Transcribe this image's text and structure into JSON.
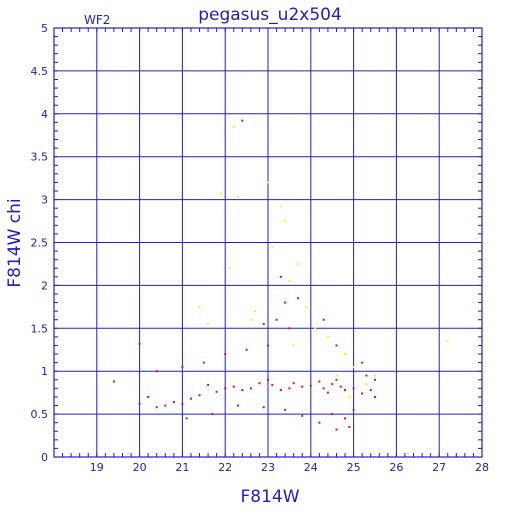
{
  "chart_data": {
    "type": "scatter",
    "title": "pegasus_u2x504",
    "corner_label": "WF2",
    "xlabel": "F814W",
    "ylabel": "F814W chi",
    "xlim": [
      18,
      28
    ],
    "ylim": [
      0,
      5
    ],
    "x_major_ticks": [
      19,
      20,
      21,
      22,
      23,
      24,
      25,
      26,
      27,
      28
    ],
    "y_major_ticks": [
      0,
      0.5,
      1,
      1.5,
      2,
      2.5,
      3,
      3.5,
      4,
      4.5,
      5
    ],
    "x_tick_labels": [
      "19",
      "20",
      "21",
      "22",
      "23",
      "24",
      "25",
      "26",
      "27",
      "28"
    ],
    "y_tick_labels": [
      "0",
      "0.5",
      "1",
      "1.5",
      "2",
      "2.5",
      "3",
      "3.5",
      "4",
      "4.5",
      "5"
    ],
    "grid": true,
    "colors": {
      "axis": "#2020c0",
      "grid": "#2020c0",
      "primary_points": "#ee1111",
      "secondary_points": "#ffee22"
    },
    "series": [
      {
        "color": "#ee1111",
        "points": [
          [
            24.5,
            0.85
          ],
          [
            24.3,
            0.8
          ],
          [
            24.6,
            0.9
          ],
          [
            24.4,
            0.75
          ],
          [
            24.7,
            0.82
          ],
          [
            24.2,
            0.88
          ],
          [
            24.8,
            0.78
          ],
          [
            24.0,
            0.83
          ],
          [
            25.0,
            0.8
          ],
          [
            25.2,
            0.74
          ],
          [
            25.4,
            0.78
          ],
          [
            25.5,
            0.7
          ],
          [
            23.8,
            0.82
          ],
          [
            23.6,
            0.86
          ],
          [
            23.5,
            0.8
          ],
          [
            23.3,
            0.78
          ],
          [
            23.1,
            0.84
          ],
          [
            23.0,
            0.9
          ],
          [
            22.8,
            0.86
          ],
          [
            22.6,
            0.8
          ],
          [
            22.4,
            0.78
          ],
          [
            22.2,
            0.82
          ],
          [
            22.0,
            0.8
          ],
          [
            21.8,
            0.76
          ],
          [
            21.6,
            0.84
          ],
          [
            21.4,
            0.72
          ],
          [
            21.2,
            0.68
          ],
          [
            21.0,
            0.62
          ],
          [
            20.8,
            0.64
          ],
          [
            20.6,
            0.6
          ],
          [
            20.4,
            0.58
          ],
          [
            20.2,
            0.7
          ],
          [
            20.0,
            0.62
          ],
          [
            19.4,
            0.88
          ],
          [
            20.0,
            1.32
          ],
          [
            20.4,
            1.0
          ],
          [
            21.0,
            1.05
          ],
          [
            21.5,
            1.1
          ],
          [
            22.0,
            1.2
          ],
          [
            22.5,
            1.25
          ],
          [
            23.0,
            1.3
          ],
          [
            23.2,
            1.6
          ],
          [
            22.9,
            1.55
          ],
          [
            23.5,
            1.5
          ],
          [
            23.4,
            1.8
          ],
          [
            23.7,
            1.85
          ],
          [
            23.3,
            2.1
          ],
          [
            22.4,
            3.92
          ],
          [
            24.3,
            1.6
          ],
          [
            24.6,
            1.3
          ],
          [
            25.2,
            1.1
          ],
          [
            25.0,
            0.55
          ],
          [
            24.8,
            0.45
          ],
          [
            24.5,
            0.5
          ],
          [
            24.2,
            0.4
          ],
          [
            23.8,
            0.48
          ],
          [
            23.4,
            0.55
          ],
          [
            22.9,
            0.58
          ],
          [
            22.3,
            0.6
          ],
          [
            21.7,
            0.5
          ],
          [
            21.1,
            0.45
          ],
          [
            24.9,
            0.35
          ],
          [
            24.6,
            0.32
          ],
          [
            25.3,
            0.95
          ],
          [
            25.5,
            0.9
          ]
        ]
      },
      {
        "color": "#ffee22",
        "points": [
          [
            22.2,
            3.85
          ],
          [
            21.9,
            3.07
          ],
          [
            22.3,
            3.03
          ],
          [
            23.0,
            3.2
          ],
          [
            23.3,
            2.92
          ],
          [
            23.4,
            2.75
          ],
          [
            23.1,
            2.45
          ],
          [
            23.7,
            2.25
          ],
          [
            23.5,
            2.05
          ],
          [
            23.9,
            1.75
          ],
          [
            22.1,
            2.2
          ],
          [
            22.7,
            1.7
          ],
          [
            22.6,
            1.6
          ],
          [
            21.6,
            1.55
          ],
          [
            24.1,
            1.5
          ],
          [
            24.4,
            1.4
          ],
          [
            24.8,
            1.2
          ],
          [
            25.0,
            1.05
          ],
          [
            25.3,
            0.85
          ],
          [
            25.5,
            0.95
          ],
          [
            24.9,
            0.7
          ],
          [
            24.6,
            0.95
          ],
          [
            27.2,
            1.35
          ],
          [
            21.4,
            1.75
          ],
          [
            23.6,
            1.3
          ]
        ]
      }
    ]
  }
}
